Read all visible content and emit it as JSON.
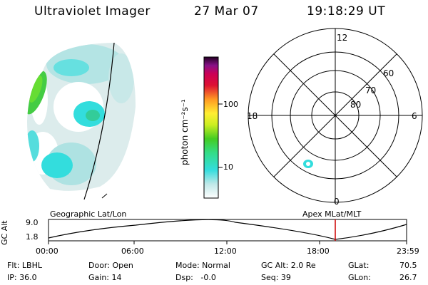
{
  "header": {
    "instrument": "Ultraviolet Imager",
    "date": "27 Mar 07",
    "time": "19:18:29 UT"
  },
  "colorbar": {
    "label": "photon cm⁻²s⁻¹",
    "ticks": [
      "100",
      "10"
    ]
  },
  "polar_plot": {
    "mlt_labels": {
      "top": "12",
      "left": "18",
      "right": "6",
      "bottom": "0"
    },
    "lat_labels": [
      "60",
      "70",
      "80"
    ]
  },
  "orbit": {
    "ylabel": "GC Alt",
    "y_ticks": [
      "9.0",
      "1.8"
    ],
    "left_title": "Geographic Lat/Lon",
    "right_title": "Apex  MLat/MLT",
    "x_ticks": [
      "00:00",
      "06:00",
      "12:00",
      "18:00",
      "23:59"
    ]
  },
  "status": {
    "flt": "Flt: LBHL",
    "ip": "IP: 36.0",
    "door": "Door: Open",
    "gain": "Gain: 14",
    "mode": "Mode: Normal",
    "dsp": "Dsp:   -0.0",
    "gcalt": "GC Alt: 2.0 Re",
    "seq": "Seq: 39",
    "glat": "GLat:",
    "glat_val": "70.5",
    "glon": "GLon:",
    "glon_val": "26.7"
  },
  "colors": {
    "accent_line": "#cc0000",
    "aurora_bright": "#44cc44",
    "aurora_mid": "#33dddd",
    "aurora_faint": "#cfe8e8"
  }
}
